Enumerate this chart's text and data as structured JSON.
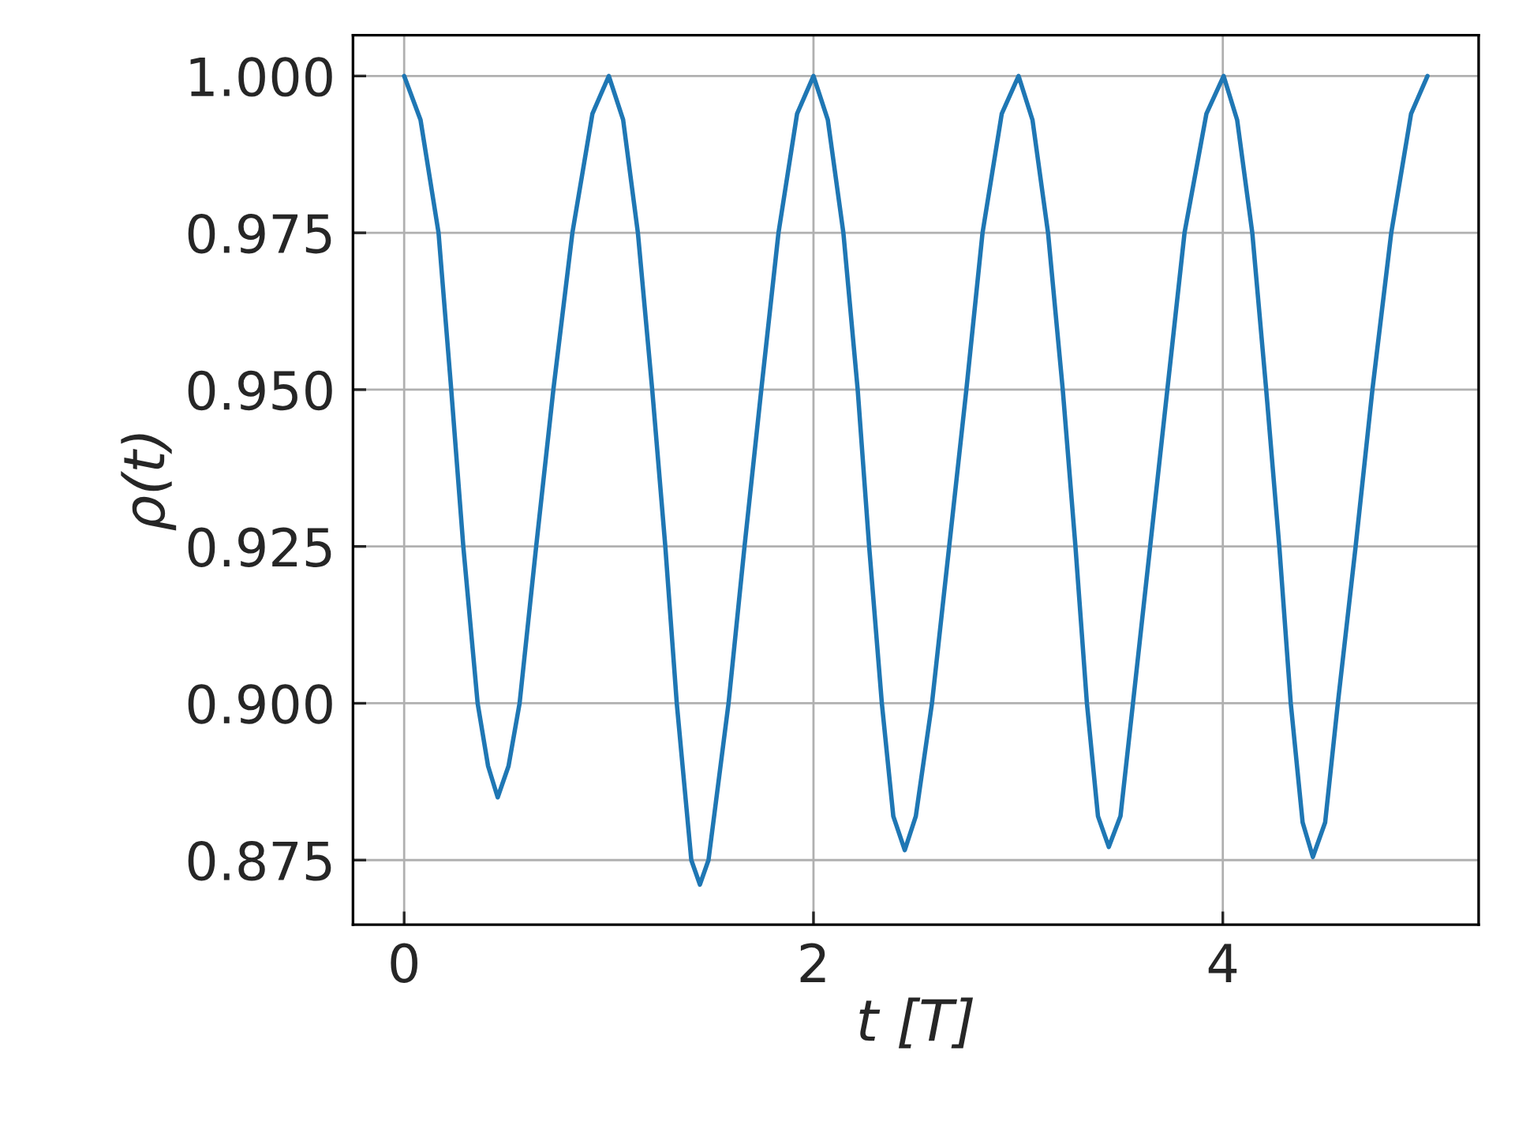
{
  "chart_data": {
    "type": "line",
    "xlabel": "t [T]",
    "ylabel": "ρ(t)",
    "xlim": [
      -0.25,
      5.25
    ],
    "ylim": [
      0.8647,
      1.0065
    ],
    "xticks": [
      0,
      2,
      4
    ],
    "yticks": [
      {
        "value": 0.875,
        "label": "0.875"
      },
      {
        "value": 0.9,
        "label": "0.900"
      },
      {
        "value": 0.925,
        "label": "0.925"
      },
      {
        "value": 0.95,
        "label": "0.950"
      },
      {
        "value": 0.975,
        "label": "0.975"
      },
      {
        "value": 1.0,
        "label": "1.000"
      }
    ],
    "grid": true,
    "marker": "none",
    "line_style": "solid",
    "series": [
      {
        "color": "#1f77b4",
        "x": [
          0,
          0.08,
          0.168,
          0.23,
          0.289,
          0.359,
          0.41,
          0.457,
          0.51,
          0.564,
          0.645,
          0.729,
          0.822,
          0.92,
          1.0,
          1.07,
          1.142,
          1.212,
          1.276,
          1.332,
          1.403,
          1.445,
          1.487,
          1.585,
          1.663,
          1.745,
          1.829,
          1.92,
          2.0,
          2.07,
          2.146,
          2.216,
          2.272,
          2.334,
          2.39,
          2.446,
          2.5,
          2.579,
          2.663,
          2.747,
          2.826,
          2.92,
          3.002,
          3.07,
          3.146,
          3.218,
          3.28,
          3.336,
          3.39,
          3.443,
          3.5,
          3.561,
          3.645,
          3.729,
          3.813,
          3.92,
          4.004,
          4.07,
          4.144,
          4.212,
          4.276,
          4.332,
          4.39,
          4.44,
          4.5,
          4.562,
          4.649,
          4.731,
          4.823,
          4.92,
          5.0
        ],
        "values": [
          1.0,
          0.993,
          0.975,
          0.95,
          0.925,
          0.9,
          0.89,
          0.885,
          0.89,
          0.9,
          0.925,
          0.95,
          0.975,
          0.994,
          1.0,
          0.993,
          0.975,
          0.95,
          0.925,
          0.9,
          0.875,
          0.8711,
          0.875,
          0.9,
          0.925,
          0.95,
          0.975,
          0.994,
          1.0,
          0.993,
          0.975,
          0.95,
          0.925,
          0.9,
          0.882,
          0.8766,
          0.882,
          0.9,
          0.925,
          0.95,
          0.975,
          0.994,
          1.0,
          0.993,
          0.975,
          0.95,
          0.925,
          0.9,
          0.882,
          0.8771,
          0.882,
          0.9,
          0.925,
          0.95,
          0.975,
          0.994,
          1.0,
          0.993,
          0.975,
          0.95,
          0.925,
          0.9,
          0.881,
          0.8755,
          0.881,
          0.9,
          0.925,
          0.95,
          0.975,
          0.994,
          1.0
        ]
      }
    ]
  }
}
